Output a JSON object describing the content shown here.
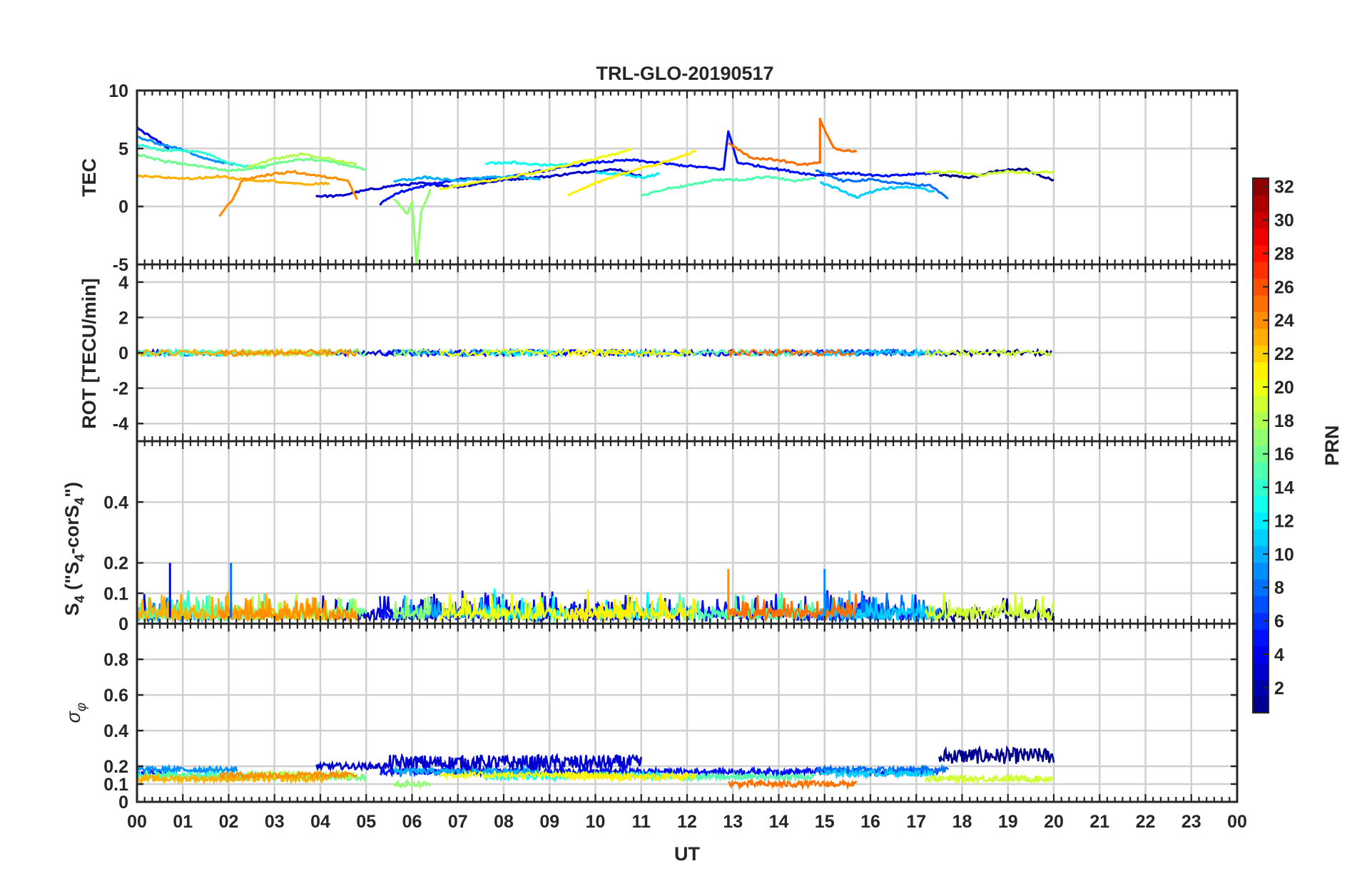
{
  "chart_data": {
    "type": "line",
    "title": "TRL-GLO-20190517",
    "xlabel": "UT",
    "x_ticks": [
      "00",
      "01",
      "02",
      "03",
      "04",
      "05",
      "06",
      "07",
      "08",
      "09",
      "10",
      "11",
      "12",
      "13",
      "14",
      "15",
      "16",
      "17",
      "18",
      "19",
      "20",
      "21",
      "22",
      "23",
      "00"
    ],
    "x_range": [
      0,
      24
    ],
    "grid": true,
    "panels": [
      {
        "id": "tec",
        "ylabel": "TEC",
        "ylim": [
          -5,
          10
        ],
        "yticks": [
          10,
          5,
          0,
          -5
        ],
        "note": "daytime TEC arcs per PRN, mostly 1-5 TECU; PRN 17 dips to -5 near 06:10 UT; arcs end at 20 UT"
      },
      {
        "id": "rot",
        "ylabel": "ROT [TECU/min]",
        "ylim": [
          -5,
          5
        ],
        "yticks": [
          4,
          2,
          0,
          -2,
          -4
        ],
        "note": "ROT flat near 0 for all PRNs"
      },
      {
        "id": "s4",
        "ylabel": "S4 (\"S4-corS4\")",
        "ylabel_main": "S",
        "ylabel_sub": "4",
        "ylabel_rest": " (\"S",
        "ylabel_sub2": "4",
        "ylabel_mid": "-corS",
        "ylabel_sub3": "4",
        "ylabel_end": "\")",
        "ylim": [
          0,
          0.6
        ],
        "yticks": [
          0.4,
          0.2,
          0.1,
          0
        ],
        "note": "S4 mostly 0-0.1, spikes up to 0.2 near 00:45 and 02:05"
      },
      {
        "id": "sigma",
        "ylabel": "σφ",
        "ylabel_main": "σ",
        "ylabel_sub": "φ",
        "ylim": [
          0,
          1
        ],
        "yticks": [
          0.8,
          0.6,
          0.4,
          0.2,
          0.1,
          0
        ],
        "note": "phase scintillation 0.1-0.2, PRN 1-2 up to 0.3 between 05:30-11 and 17:30-20 UT"
      }
    ],
    "colorbar": {
      "label": "PRN",
      "range": [
        1,
        32
      ],
      "ticks": [
        32,
        30,
        28,
        26,
        24,
        22,
        20,
        18,
        16,
        14,
        12,
        10,
        8,
        6,
        4,
        2
      ],
      "colormap": "jet"
    },
    "series": [
      {
        "name": "PRN 1",
        "prn": 1,
        "tec": [
          [
            17.5,
            2.7
          ],
          [
            18.2,
            2.5
          ],
          [
            18.8,
            3.1
          ],
          [
            19.4,
            3.2
          ],
          [
            19.8,
            2.5
          ],
          [
            20,
            2.3
          ]
        ],
        "sigma_level": 0.24,
        "sigma_spikes": [
          [
            5.5,
            11.2
          ],
          [
            17.6,
            20
          ]
        ]
      },
      {
        "name": "PRN 3",
        "prn": 3,
        "tec": [
          [
            3.9,
            0.9
          ],
          [
            4.4,
            0.9
          ],
          [
            5.0,
            1.4
          ],
          [
            5.6,
            1.8
          ],
          [
            6.2,
            2.0
          ],
          [
            7.0,
            1.7
          ],
          [
            8.0,
            2.3
          ],
          [
            9.0,
            2.6
          ],
          [
            9.8,
            3.0
          ],
          [
            10.5,
            3.2
          ],
          [
            11.0,
            2.6
          ]
        ],
        "sigma_level": 0.2,
        "sigma_spikes": [
          [
            5.5,
            11.2
          ]
        ]
      },
      {
        "name": "PRN 4",
        "prn": 4,
        "tec": [
          [
            0.0,
            6.8
          ],
          [
            0.3,
            6.0
          ],
          [
            0.7,
            5.0
          ]
        ],
        "sigma_level": 0.16
      },
      {
        "name": "PRN 5",
        "prn": 5,
        "tec": [
          [
            5.3,
            0.2
          ],
          [
            5.7,
            1.2
          ],
          [
            6.4,
            1.9
          ],
          [
            7.1,
            2.4
          ],
          [
            8.0,
            2.4
          ],
          [
            8.6,
            2.9
          ],
          [
            9.2,
            3.3
          ],
          [
            10.0,
            3.8
          ],
          [
            10.8,
            4.0
          ],
          [
            11.5,
            3.7
          ],
          [
            12.0,
            3.5
          ],
          [
            12.8,
            3.2
          ],
          [
            12.9,
            6.5
          ],
          [
            13.1,
            3.8
          ],
          [
            14.0,
            3.2
          ],
          [
            14.8,
            2.7
          ],
          [
            15.5,
            2.9
          ],
          [
            16.3,
            2.6
          ],
          [
            17.0,
            2.8
          ],
          [
            17.5,
            2.9
          ]
        ],
        "sigma_level": 0.17
      },
      {
        "name": "PRN 8",
        "prn": 8,
        "tec": [
          [
            14.8,
            3.1
          ],
          [
            15.4,
            2.2
          ],
          [
            16.0,
            2.3
          ],
          [
            16.6,
            2.0
          ],
          [
            17.3,
            1.8
          ],
          [
            17.7,
            0.7
          ]
        ],
        "sigma_level": 0.18
      },
      {
        "name": "PRN 9",
        "prn": 9,
        "tec": [
          [
            0.0,
            6.0
          ],
          [
            0.4,
            5.5
          ],
          [
            0.9,
            5.0
          ],
          [
            1.4,
            4.3
          ],
          [
            1.8,
            3.8
          ],
          [
            2.2,
            3.6
          ]
        ],
        "sigma_level": 0.18
      },
      {
        "name": "PRN 10",
        "prn": 10,
        "tec": [
          [
            5.6,
            2.2
          ],
          [
            6.3,
            2.5
          ],
          [
            7.0,
            2.2
          ],
          [
            7.6,
            2.5
          ],
          [
            8.2,
            2.6
          ],
          [
            8.8,
            2.4
          ]
        ],
        "sigma_level": 0.17
      },
      {
        "name": "PRN 11",
        "prn": 11,
        "tec": [
          [
            14.9,
            2.1
          ],
          [
            15.3,
            1.5
          ],
          [
            15.7,
            0.8
          ],
          [
            16.2,
            1.5
          ],
          [
            16.8,
            1.7
          ],
          [
            17.4,
            1.3
          ]
        ],
        "sigma_level": 0.16
      },
      {
        "name": "PRN 12",
        "prn": 12,
        "tec": [
          [
            10.0,
            2.9
          ],
          [
            10.6,
            2.8
          ],
          [
            11.0,
            2.5
          ],
          [
            11.4,
            2.8
          ]
        ],
        "sigma_level": 0.15
      },
      {
        "name": "PRN 13",
        "prn": 13,
        "tec": [
          [
            7.6,
            3.7
          ],
          [
            8.2,
            3.8
          ],
          [
            8.8,
            3.6
          ],
          [
            9.4,
            3.6
          ]
        ],
        "sigma_level": 0.14
      },
      {
        "name": "PRN 14",
        "prn": 14,
        "tec": [
          [
            0.0,
            5.3
          ],
          [
            0.5,
            4.9
          ],
          [
            1.0,
            4.8
          ],
          [
            1.5,
            4.6
          ],
          [
            1.9,
            3.9
          ],
          [
            2.3,
            3.5
          ],
          [
            2.8,
            3.3
          ]
        ],
        "sigma_level": 0.15
      },
      {
        "name": "PRN 15",
        "prn": 15,
        "tec": [
          [
            11.0,
            0.9
          ],
          [
            11.5,
            1.5
          ],
          [
            12.0,
            1.8
          ],
          [
            12.6,
            2.3
          ],
          [
            13.2,
            2.3
          ],
          [
            13.8,
            2.6
          ],
          [
            14.3,
            2.2
          ],
          [
            14.8,
            2.4
          ]
        ],
        "sigma_level": 0.14
      },
      {
        "name": "PRN 16",
        "prn": 16,
        "tec": [
          [
            0.0,
            4.5
          ],
          [
            0.6,
            3.9
          ],
          [
            1.3,
            3.5
          ],
          [
            2.0,
            3.1
          ],
          [
            2.6,
            3.3
          ],
          [
            3.1,
            3.8
          ],
          [
            3.7,
            4.1
          ],
          [
            4.3,
            3.8
          ],
          [
            5.0,
            3.2
          ]
        ],
        "sigma_level": 0.14
      },
      {
        "name": "PRN 17",
        "prn": 17,
        "tec": [
          [
            5.6,
            0.6
          ],
          [
            5.9,
            -0.6
          ],
          [
            6.0,
            0.4
          ],
          [
            6.1,
            -5.0
          ],
          [
            6.2,
            -0.5
          ],
          [
            6.4,
            1.5
          ]
        ],
        "sigma_level": 0.1
      },
      {
        "name": "PRN 18",
        "prn": 18,
        "tec": [
          [
            2.4,
            3.4
          ],
          [
            3.0,
            4.1
          ],
          [
            3.6,
            4.5
          ],
          [
            4.2,
            4.1
          ],
          [
            4.8,
            3.6
          ]
        ],
        "sigma_level": 0.15
      },
      {
        "name": "PRN 19",
        "prn": 19,
        "tec": [
          [
            17.2,
            2.9
          ],
          [
            17.8,
            3.0
          ],
          [
            18.4,
            2.7
          ],
          [
            19.0,
            3.0
          ],
          [
            19.6,
            2.9
          ],
          [
            20.0,
            3.0
          ]
        ],
        "sigma_level": 0.13
      },
      {
        "name": "PRN 20",
        "prn": 20,
        "tec": [
          [
            6.6,
            1.5
          ],
          [
            7.2,
            1.9
          ],
          [
            7.8,
            2.3
          ],
          [
            8.4,
            2.7
          ],
          [
            9.0,
            3.2
          ],
          [
            9.6,
            3.8
          ],
          [
            10.2,
            4.3
          ],
          [
            10.8,
            4.9
          ]
        ],
        "sigma_level": 0.15
      },
      {
        "name": "PRN 21",
        "prn": 21,
        "tec": [
          [
            9.4,
            1.0
          ],
          [
            10.0,
            2.0
          ],
          [
            10.5,
            2.7
          ],
          [
            11.0,
            3.3
          ],
          [
            11.6,
            3.9
          ],
          [
            12.2,
            4.8
          ]
        ],
        "sigma_level": 0.14
      },
      {
        "name": "PRN 23",
        "prn": 23,
        "tec": [
          [
            0.0,
            2.6
          ],
          [
            0.6,
            2.5
          ],
          [
            1.2,
            2.4
          ],
          [
            1.8,
            2.6
          ],
          [
            2.4,
            2.3
          ],
          [
            3.0,
            2.2
          ],
          [
            3.6,
            1.9
          ],
          [
            4.2,
            2.0
          ]
        ],
        "sigma_level": 0.13
      },
      {
        "name": "PRN 24",
        "prn": 24,
        "tec": [
          [
            1.8,
            -0.8
          ],
          [
            2.1,
            0.7
          ],
          [
            2.3,
            2.3
          ],
          [
            2.8,
            2.7
          ],
          [
            3.4,
            3.0
          ],
          [
            4.0,
            2.6
          ],
          [
            4.6,
            2.3
          ],
          [
            4.8,
            0.6
          ]
        ],
        "sigma_level": 0.15
      },
      {
        "name": "PRN 25",
        "prn": 25,
        "tec": [
          [
            12.9,
            5.5
          ],
          [
            13.4,
            4.2
          ],
          [
            14.0,
            4.0
          ],
          [
            14.5,
            3.6
          ],
          [
            14.9,
            3.8
          ],
          [
            14.9,
            7.5
          ],
          [
            15.2,
            5.0
          ],
          [
            15.7,
            4.7
          ]
        ],
        "sigma_level": 0.1
      }
    ]
  }
}
